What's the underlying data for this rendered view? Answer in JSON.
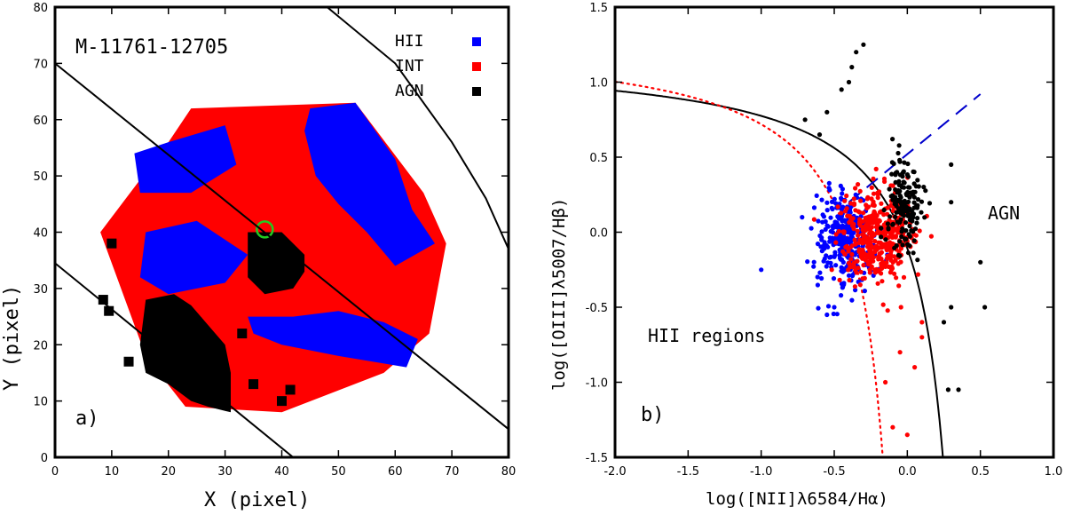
{
  "chart_data": [
    {
      "type": "scatter",
      "panel_label": "a)",
      "title": "M-11761-12705",
      "xlabel": "X  (pixel)",
      "ylabel": "Y  (pixel)",
      "xlim": [
        0,
        80
      ],
      "ylim": [
        0,
        80
      ],
      "xticks": [
        0,
        10,
        20,
        30,
        40,
        50,
        60,
        70,
        80
      ],
      "yticks": [
        0,
        10,
        20,
        30,
        40,
        50,
        60,
        70,
        80
      ],
      "legend": [
        {
          "label": "HII",
          "color": "#0000ff"
        },
        {
          "label": "INT",
          "color": "#ff0000"
        },
        {
          "label": "AGN",
          "color": "#000000"
        }
      ],
      "colors": {
        "HII": "#0000ff",
        "INT": "#ff0000",
        "AGN": "#000000",
        "center": "#22cc22"
      },
      "hexagon": [
        [
          24,
          62
        ],
        [
          53,
          63
        ],
        [
          65,
          47
        ],
        [
          69,
          38
        ],
        [
          66,
          22
        ],
        [
          58,
          15
        ],
        [
          40,
          8
        ],
        [
          23,
          9
        ],
        [
          16,
          18
        ],
        [
          8,
          40
        ],
        [
          20,
          56
        ]
      ],
      "hii_regions": [
        [
          [
            20,
            56
          ],
          [
            30,
            59
          ],
          [
            32,
            52
          ],
          [
            24,
            47
          ],
          [
            15,
            47
          ],
          [
            14,
            54
          ]
        ],
        [
          [
            45,
            62
          ],
          [
            53,
            63
          ],
          [
            60,
            53
          ],
          [
            63,
            44
          ],
          [
            67,
            38
          ],
          [
            60,
            34
          ],
          [
            55,
            40
          ],
          [
            50,
            45
          ],
          [
            46,
            50
          ],
          [
            44,
            58
          ]
        ],
        [
          [
            16,
            40
          ],
          [
            25,
            42
          ],
          [
            34,
            36
          ],
          [
            30,
            31
          ],
          [
            20,
            29
          ],
          [
            15,
            32
          ]
        ],
        [
          [
            34,
            25
          ],
          [
            42,
            25
          ],
          [
            50,
            26
          ],
          [
            58,
            24
          ],
          [
            64,
            21
          ],
          [
            62,
            16
          ],
          [
            50,
            18
          ],
          [
            40,
            20
          ],
          [
            35,
            22
          ]
        ]
      ],
      "agn_core": [
        [
          34,
          40
        ],
        [
          40,
          40
        ],
        [
          44,
          36
        ],
        [
          44,
          33
        ],
        [
          42,
          30
        ],
        [
          37,
          29
        ],
        [
          34,
          32
        ]
      ],
      "agn_lower": [
        [
          16,
          28
        ],
        [
          21,
          29
        ],
        [
          24,
          27
        ],
        [
          30,
          20
        ],
        [
          31,
          15
        ],
        [
          31,
          8
        ],
        [
          27,
          9
        ],
        [
          24,
          10
        ],
        [
          20,
          13
        ],
        [
          16,
          15
        ],
        [
          15,
          20
        ]
      ],
      "agn_specks": [
        [
          10,
          38
        ],
        [
          8.5,
          28
        ],
        [
          9.5,
          26
        ],
        [
          35,
          13
        ],
        [
          40,
          10
        ],
        [
          41.5,
          12
        ],
        [
          33,
          22
        ],
        [
          25,
          24
        ],
        [
          13,
          17
        ]
      ],
      "center": [
        37,
        40.5
      ],
      "lines": [
        {
          "x1": 0,
          "y1": 70,
          "x2": 80,
          "y2": 5
        },
        {
          "x1": 0,
          "y1": 34.5,
          "x2": 42,
          "y2": 0
        }
      ],
      "outer_arc": [
        [
          48,
          80
        ],
        [
          60,
          70
        ],
        [
          70,
          56
        ],
        [
          76,
          46
        ],
        [
          80,
          37
        ]
      ]
    },
    {
      "type": "scatter",
      "panel_label": "b)",
      "xlabel": "log([NII]λ6584/Hα)",
      "ylabel": "log([OIII]λ5007/Hβ)",
      "xlim": [
        -2.0,
        1.0
      ],
      "ylim": [
        -1.5,
        1.5
      ],
      "xticks": [
        "-2.0",
        "-1.5",
        "-1.0",
        "-0.5",
        "0.0",
        "0.5",
        "1.0"
      ],
      "yticks": [
        "-1.5",
        "-1.0",
        "-0.5",
        "0.0",
        "0.5",
        "1.0",
        "1.5"
      ],
      "annotations": [
        {
          "text": "AGN",
          "x": 0.63,
          "y": 0.11
        },
        {
          "text": "HII regions",
          "x": -1.45,
          "y": -0.66
        }
      ],
      "series": [
        {
          "name": "HII",
          "color": "#0000ff",
          "center": [
            -0.42,
            -0.05
          ],
          "spread": [
            0.1,
            0.16
          ],
          "count": 320
        },
        {
          "name": "INT",
          "color": "#ff0000",
          "center": [
            -0.22,
            -0.02
          ],
          "spread": [
            0.12,
            0.15
          ],
          "count": 420
        },
        {
          "name": "AGN",
          "color": "#000000",
          "center": [
            -0.02,
            0.17
          ],
          "spread": [
            0.06,
            0.18
          ],
          "count": 150
        }
      ],
      "outliers": {
        "HII": [
          [
            -1.0,
            -0.25
          ],
          [
            -0.72,
            0.1
          ],
          [
            -0.55,
            -0.55
          ],
          [
            -0.5,
            -0.5
          ]
        ],
        "INT": [
          [
            -0.1,
            -1.3
          ],
          [
            -0.15,
            -1.0
          ],
          [
            0.0,
            -1.35
          ],
          [
            0.05,
            -0.9
          ],
          [
            -0.05,
            -0.8
          ],
          [
            0.1,
            -0.6
          ],
          [
            0.1,
            -0.7
          ]
        ],
        "AGN": [
          [
            -0.3,
            1.25
          ],
          [
            -0.35,
            1.2
          ],
          [
            -0.38,
            1.1
          ],
          [
            -0.45,
            0.95
          ],
          [
            -0.4,
            1.0
          ],
          [
            -0.55,
            0.8
          ],
          [
            -0.6,
            0.65
          ],
          [
            -0.7,
            0.75
          ],
          [
            0.3,
            0.45
          ],
          [
            0.3,
            0.2
          ],
          [
            0.5,
            -0.2
          ],
          [
            0.53,
            -0.5
          ],
          [
            0.3,
            -0.5
          ],
          [
            0.25,
            -0.6
          ],
          [
            0.28,
            -1.05
          ],
          [
            0.35,
            -1.05
          ]
        ]
      },
      "curves": [
        {
          "name": "Kewley",
          "style": "solid",
          "color": "#000000",
          "formula": "0.61/(x-0.47)+1.19"
        },
        {
          "name": "Kauffmann",
          "style": "dotted",
          "color": "#ff0000",
          "formula": "0.61/(x-0.05)+1.30"
        },
        {
          "name": "Seyfert-LINER",
          "style": "dashed",
          "color": "#0000cc",
          "x_range": [
            -0.4,
            0.5
          ],
          "y_range": [
            0.2,
            0.92
          ]
        }
      ]
    }
  ]
}
